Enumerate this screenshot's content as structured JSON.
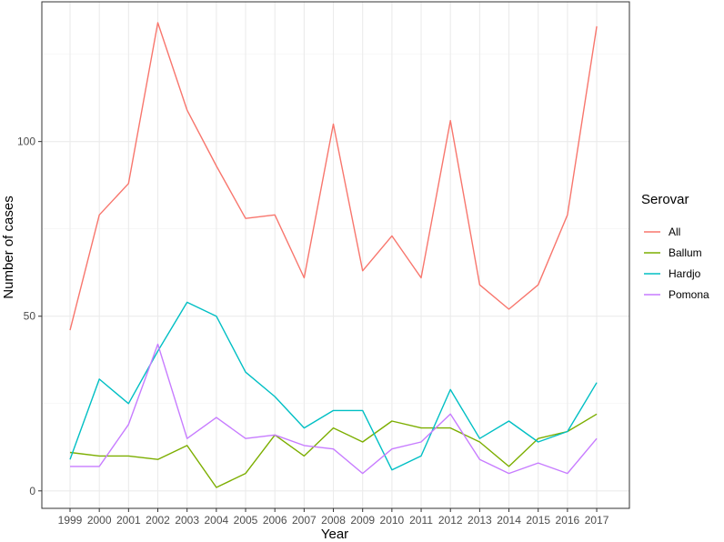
{
  "chart_data": {
    "type": "line",
    "xlabel": "Year",
    "ylabel": "Number of cases",
    "x": [
      "1999",
      "2000",
      "2001",
      "2002",
      "2003",
      "2004",
      "2005",
      "2006",
      "2007",
      "2008",
      "2009",
      "2010",
      "2011",
      "2012",
      "2013",
      "2014",
      "2015",
      "2016",
      "2017"
    ],
    "ylim": [
      -5,
      140
    ],
    "yticks": [
      0,
      50,
      100
    ],
    "grid": true,
    "legend": {
      "title": "Serovar",
      "position": "right"
    },
    "series": [
      {
        "name": "All",
        "color": "#F8766D",
        "values": [
          46,
          79,
          88,
          134,
          109,
          93,
          78,
          79,
          61,
          105,
          63,
          73,
          61,
          106,
          59,
          52,
          59,
          79,
          133
        ]
      },
      {
        "name": "Ballum",
        "color": "#7CAE00",
        "values": [
          11,
          10,
          10,
          9,
          13,
          1,
          5,
          16,
          10,
          18,
          14,
          20,
          18,
          18,
          14,
          7,
          15,
          17,
          22
        ]
      },
      {
        "name": "Hardjo",
        "color": "#00BFC4",
        "values": [
          9,
          32,
          25,
          40,
          54,
          50,
          34,
          27,
          18,
          23,
          23,
          6,
          10,
          29,
          15,
          20,
          14,
          17,
          31
        ]
      },
      {
        "name": "Pomona",
        "color": "#C77CFF",
        "values": [
          7,
          7,
          19,
          42,
          15,
          21,
          15,
          16,
          13,
          12,
          5,
          12,
          14,
          22,
          9,
          5,
          8,
          5,
          15
        ]
      }
    ]
  }
}
